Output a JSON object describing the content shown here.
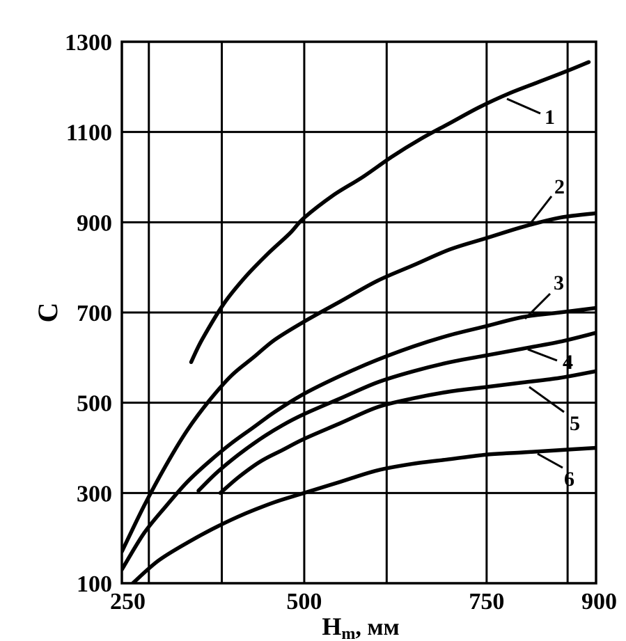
{
  "chart_data": {
    "type": "line",
    "xlabel_main": "H",
    "xlabel_sub": "m",
    "xlabel_rest": ", мм",
    "ylabel": "C",
    "xlim": [
      250,
      900
    ],
    "ylim": [
      100,
      1300
    ],
    "x_ticks": [
      250,
      500,
      750,
      900
    ],
    "y_ticks": [
      100,
      300,
      500,
      700,
      900,
      1100,
      1300
    ],
    "x_grid": [
      250,
      287,
      387,
      500,
      613,
      750,
      861,
      900
    ],
    "y_grid": [
      100,
      300,
      500,
      700,
      900,
      1100,
      1300
    ],
    "grid": true,
    "series": [
      {
        "name": "1",
        "x": [
          345,
          360,
          390,
          420,
          450,
          480,
          500,
          540,
          580,
          620,
          660,
          700,
          740,
          780,
          820,
          860,
          890
        ],
        "y": [
          590,
          640,
          720,
          780,
          830,
          875,
          910,
          960,
          1000,
          1045,
          1085,
          1120,
          1155,
          1185,
          1210,
          1235,
          1255
        ]
      },
      {
        "name": "2",
        "x": [
          250,
          280,
          310,
          340,
          370,
          400,
          430,
          460,
          500,
          550,
          600,
          650,
          700,
          750,
          800,
          850,
          900
        ],
        "y": [
          170,
          270,
          360,
          440,
          505,
          560,
          600,
          640,
          680,
          725,
          770,
          805,
          840,
          865,
          890,
          910,
          920
        ]
      },
      {
        "name": "3",
        "x": [
          250,
          280,
          310,
          340,
          370,
          400,
          430,
          460,
          500,
          550,
          600,
          650,
          700,
          750,
          800,
          850,
          900
        ],
        "y": [
          130,
          210,
          270,
          325,
          370,
          410,
          445,
          480,
          520,
          560,
          595,
          625,
          650,
          670,
          690,
          700,
          710
        ]
      },
      {
        "name": "4",
        "x": [
          355,
          380,
          410,
          440,
          470,
          500,
          550,
          600,
          650,
          700,
          750,
          800,
          850,
          900
        ],
        "y": [
          305,
          345,
          385,
          420,
          450,
          475,
          510,
          545,
          570,
          590,
          605,
          620,
          635,
          655
        ]
      },
      {
        "name": "5",
        "x": [
          385,
          410,
          440,
          470,
          500,
          550,
          600,
          650,
          700,
          750,
          800,
          850,
          900
        ],
        "y": [
          300,
          335,
          370,
          395,
          420,
          455,
          490,
          510,
          525,
          535,
          545,
          555,
          570
        ]
      },
      {
        "name": "6",
        "x": [
          265,
          300,
          340,
          380,
          420,
          460,
          500,
          550,
          600,
          650,
          700,
          750,
          800,
          850,
          900
        ],
        "y": [
          100,
          150,
          190,
          225,
          255,
          280,
          300,
          325,
          350,
          365,
          375,
          385,
          390,
          395,
          400
        ]
      }
    ]
  }
}
